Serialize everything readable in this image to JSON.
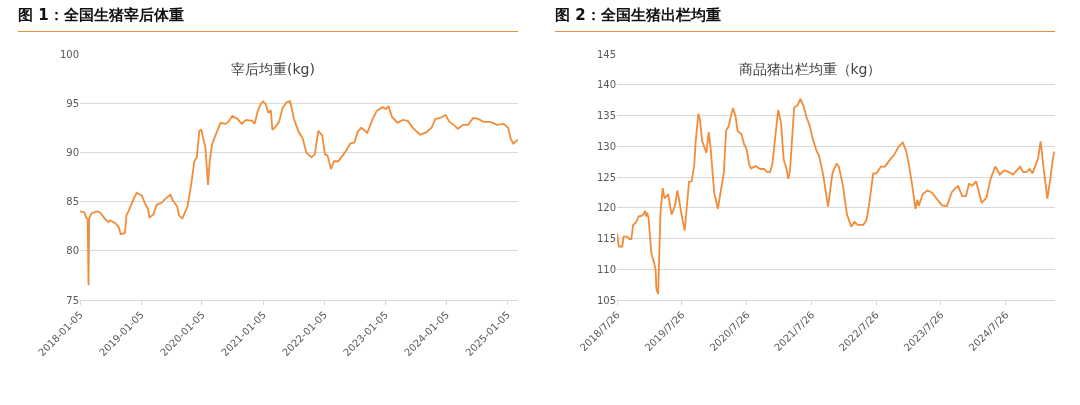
{
  "chart_data": [
    {
      "type": "line",
      "title": "图 1：全国生猪宰后体重",
      "subtitle": "宰后均重(kg)",
      "grid": "y",
      "marker": "none",
      "line_style": "solid",
      "xlim": [
        "2018-01-05",
        "2025-03-10"
      ],
      "ylim": [
        75,
        100
      ],
      "yticks": [
        75,
        80,
        85,
        90,
        95,
        100
      ],
      "xticks": [
        "2018-01-05",
        "2019-01-05",
        "2020-01-05",
        "2021-01-05",
        "2022-01-05",
        "2023-01-05",
        "2024-01-05",
        "2025-01-05"
      ],
      "x": [
        "2018-01-05",
        "2018-02-01",
        "2018-02-10",
        "2018-02-20",
        "2018-02-25",
        "2018-03-01",
        "2018-03-15",
        "2018-04-15",
        "2018-05-05",
        "2018-06-01",
        "2018-06-25",
        "2018-07-05",
        "2018-08-05",
        "2018-08-25",
        "2018-09-05",
        "2018-10-01",
        "2018-10-10",
        "2018-10-25",
        "2018-11-20",
        "2018-12-10",
        "2019-01-10",
        "2019-02-01",
        "2019-02-15",
        "2019-02-25",
        "2019-03-20",
        "2019-04-10",
        "2019-05-10",
        "2019-06-01",
        "2019-06-30",
        "2019-07-15",
        "2019-08-10",
        "2019-08-20",
        "2019-09-10",
        "2019-10-10",
        "2019-11-01",
        "2019-11-20",
        "2019-12-05",
        "2019-12-20",
        "2020-01-01",
        "2020-01-15",
        "2020-01-25",
        "2020-02-10",
        "2020-02-20",
        "2020-03-05",
        "2020-03-25",
        "2020-04-25",
        "2020-05-25",
        "2020-06-10",
        "2020-07-05",
        "2020-08-05",
        "2020-08-30",
        "2020-09-25",
        "2020-11-01",
        "2020-11-15",
        "2020-12-05",
        "2020-12-25",
        "2021-01-05",
        "2021-01-20",
        "2021-02-05",
        "2021-02-20",
        "2021-03-01",
        "2021-03-15",
        "2021-04-10",
        "2021-05-01",
        "2021-05-25",
        "2021-06-15",
        "2021-07-10",
        "2021-08-05",
        "2021-08-30",
        "2021-09-20",
        "2021-10-20",
        "2021-11-10",
        "2021-12-01",
        "2021-12-25",
        "2022-01-10",
        "2022-01-25",
        "2022-02-15",
        "2022-03-05",
        "2022-03-30",
        "2022-05-10",
        "2022-06-10",
        "2022-07-05",
        "2022-07-25",
        "2022-08-15",
        "2022-09-20",
        "2022-10-20",
        "2022-11-15",
        "2022-12-20",
        "2023-01-10",
        "2023-01-25",
        "2023-02-15",
        "2023-03-20",
        "2023-04-20",
        "2023-05-20",
        "2023-06-20",
        "2023-08-01",
        "2023-09-05",
        "2023-10-10",
        "2023-11-01",
        "2023-12-01",
        "2024-01-01",
        "2024-01-25",
        "2024-02-20",
        "2024-03-15",
        "2024-04-15",
        "2024-05-15",
        "2024-06-15",
        "2024-07-15",
        "2024-08-15",
        "2024-09-25",
        "2024-11-05",
        "2024-12-15",
        "2025-01-10",
        "2025-01-25",
        "2025-02-10",
        "2025-03-10"
      ],
      "series": [
        {
          "color": "#f28c38",
          "values": [
            84.0,
            83.9,
            83.4,
            83.2,
            76.5,
            83.3,
            83.8,
            84.0,
            83.9,
            83.3,
            82.9,
            83.1,
            82.8,
            82.4,
            81.7,
            81.8,
            83.6,
            84.1,
            85.2,
            85.9,
            85.6,
            84.7,
            84.3,
            83.4,
            83.7,
            84.7,
            84.9,
            85.3,
            85.7,
            85.1,
            84.5,
            83.6,
            83.3,
            84.5,
            86.7,
            89.1,
            89.5,
            92.2,
            92.3,
            91.2,
            90.6,
            86.7,
            89.1,
            90.8,
            91.7,
            93.0,
            92.9,
            93.1,
            93.7,
            93.4,
            92.9,
            93.3,
            93.2,
            92.9,
            94.3,
            95.0,
            95.2,
            94.9,
            94.0,
            94.3,
            92.3,
            92.5,
            93.1,
            94.5,
            95.1,
            95.2,
            93.3,
            92.1,
            91.4,
            90.0,
            89.5,
            89.8,
            92.2,
            91.7,
            89.8,
            89.7,
            88.3,
            89.1,
            89.1,
            90.0,
            90.9,
            91.0,
            92.1,
            92.5,
            92.0,
            93.3,
            94.2,
            94.6,
            94.4,
            94.7,
            93.6,
            93.0,
            93.3,
            93.2,
            92.5,
            91.8,
            92.0,
            92.5,
            93.4,
            93.5,
            93.8,
            93.1,
            92.8,
            92.4,
            92.8,
            92.8,
            93.5,
            93.4,
            93.1,
            93.1,
            92.8,
            92.9,
            92.5,
            91.4,
            90.9,
            91.3
          ]
        }
      ]
    },
    {
      "type": "line",
      "title": "图 2：全国生猪出栏均重",
      "subtitle": "商品猪出栏均重（kg）",
      "grid": "y",
      "marker": "none",
      "line_style": "solid",
      "xlim": [
        "2018-07-26",
        "2025-04-30"
      ],
      "ylim": [
        105,
        145
      ],
      "yticks": [
        105,
        110,
        115,
        120,
        125,
        130,
        135,
        140,
        145
      ],
      "xticks": [
        {
          "value": "2018-07-26",
          "label": "2018/7/26"
        },
        {
          "value": "2019-07-26",
          "label": "2019/7/26"
        },
        {
          "value": "2020-07-26",
          "label": "2020/7/26"
        },
        {
          "value": "2021-07-26",
          "label": "2021/7/26"
        },
        {
          "value": "2022-07-26",
          "label": "2022/7/26"
        },
        {
          "value": "2023-07-26",
          "label": "2023/7/26"
        },
        {
          "value": "2024-07-26",
          "label": "2024/7/26"
        }
      ],
      "x": [
        "2018-07-26",
        "2018-08-05",
        "2018-08-25",
        "2018-09-01",
        "2018-09-20",
        "2018-10-05",
        "2018-10-15",
        "2018-10-25",
        "2018-11-10",
        "2018-11-25",
        "2018-12-15",
        "2018-12-25",
        "2019-01-01",
        "2019-01-05",
        "2019-01-12",
        "2019-01-20",
        "2019-02-05",
        "2019-02-18",
        "2019-03-01",
        "2019-03-05",
        "2019-03-15",
        "2019-03-28",
        "2019-04-10",
        "2019-04-20",
        "2019-05-10",
        "2019-05-30",
        "2019-06-18",
        "2019-07-01",
        "2019-07-10",
        "2019-07-25",
        "2019-08-12",
        "2019-09-05",
        "2019-09-20",
        "2019-10-05",
        "2019-10-12",
        "2019-10-28",
        "2019-11-05",
        "2019-11-18",
        "2019-12-12",
        "2019-12-25",
        "2020-01-05",
        "2020-01-25",
        "2020-02-15",
        "2020-03-01",
        "2020-03-20",
        "2020-04-01",
        "2020-04-15",
        "2020-04-25",
        "2020-05-10",
        "2020-05-25",
        "2020-06-05",
        "2020-06-28",
        "2020-07-12",
        "2020-07-26",
        "2020-08-10",
        "2020-08-20",
        "2020-09-15",
        "2020-10-10",
        "2020-11-01",
        "2020-11-20",
        "2020-12-05",
        "2020-12-18",
        "2020-12-30",
        "2021-01-20",
        "2021-02-05",
        "2021-02-20",
        "2021-03-05",
        "2021-03-18",
        "2021-03-28",
        "2021-04-20",
        "2021-05-08",
        "2021-05-25",
        "2021-06-10",
        "2021-06-28",
        "2021-07-16",
        "2021-08-01",
        "2021-08-25",
        "2021-09-08",
        "2021-10-01",
        "2021-10-28",
        "2021-11-22",
        "2021-12-15",
        "2021-12-28",
        "2022-01-20",
        "2022-02-12",
        "2022-03-08",
        "2022-03-26",
        "2022-04-14",
        "2022-05-15",
        "2022-06-02",
        "2022-06-18",
        "2022-07-10",
        "2022-07-28",
        "2022-08-22",
        "2022-09-15",
        "2022-10-04",
        "2022-11-05",
        "2022-12-01",
        "2022-12-24",
        "2023-01-12",
        "2023-01-26",
        "2023-02-15",
        "2023-03-05",
        "2023-03-16",
        "2023-03-24",
        "2023-04-15",
        "2023-05-10",
        "2023-06-05",
        "2023-07-05",
        "2023-08-01",
        "2023-08-30",
        "2023-09-25",
        "2023-10-16",
        "2023-11-01",
        "2023-11-24",
        "2023-12-15",
        "2024-01-01",
        "2024-01-20",
        "2024-02-10",
        "2024-03-12",
        "2024-04-08",
        "2024-05-02",
        "2024-05-28",
        "2024-06-22",
        "2024-07-18",
        "2024-08-12",
        "2024-09-05",
        "2024-09-24",
        "2024-10-16",
        "2024-11-01",
        "2024-11-20",
        "2024-12-08",
        "2024-12-24",
        "2025-01-12",
        "2025-01-25",
        "2025-02-08",
        "2025-02-26",
        "2025-03-18",
        "2025-04-05",
        "2025-04-18",
        "2025-04-25",
        "2025-04-30"
      ],
      "series": [
        {
          "color": "#f28c38",
          "values": [
            115.8,
            113.7,
            113.7,
            115.3,
            115.3,
            114.9,
            114.9,
            117.2,
            117.6,
            118.6,
            118.7,
            119.1,
            119.5,
            118.6,
            119.2,
            118.3,
            112.5,
            111.3,
            109.9,
            106.8,
            106.0,
            119.1,
            123.2,
            121.5,
            122.2,
            118.9,
            120.3,
            122.8,
            121.5,
            118.9,
            116.3,
            124.2,
            124.3,
            127.0,
            130.6,
            135.3,
            134.5,
            130.9,
            128.9,
            132.3,
            129.7,
            122.5,
            119.8,
            122.5,
            125.8,
            132.5,
            133.2,
            134.5,
            136.2,
            134.8,
            132.5,
            131.9,
            130.3,
            129.5,
            127.0,
            126.4,
            126.8,
            126.3,
            126.3,
            125.8,
            125.8,
            127.1,
            130.3,
            135.9,
            133.8,
            127.8,
            126.7,
            124.7,
            126.1,
            136.3,
            136.6,
            137.7,
            136.7,
            134.8,
            133.4,
            131.4,
            129.2,
            128.4,
            125.3,
            120.2,
            125.6,
            127.2,
            126.7,
            123.6,
            118.9,
            116.9,
            117.7,
            117.2,
            117.2,
            118.0,
            120.8,
            125.6,
            125.6,
            126.7,
            126.7,
            127.5,
            128.6,
            130.0,
            130.6,
            129.2,
            127.2,
            123.6,
            119.8,
            121.3,
            120.3,
            122.2,
            122.8,
            122.5,
            121.4,
            120.4,
            120.3,
            122.5,
            123.2,
            123.5,
            121.9,
            121.9,
            123.9,
            123.6,
            124.3,
            120.8,
            121.6,
            124.7,
            126.7,
            125.4,
            126.1,
            125.8,
            125.4,
            126.0,
            126.7,
            125.8,
            125.8,
            126.3,
            125.6,
            127.0,
            128.1,
            130.8,
            126.1,
            121.5,
            125.0,
            128.0,
            129.0,
            129.0
          ]
        }
      ]
    }
  ]
}
